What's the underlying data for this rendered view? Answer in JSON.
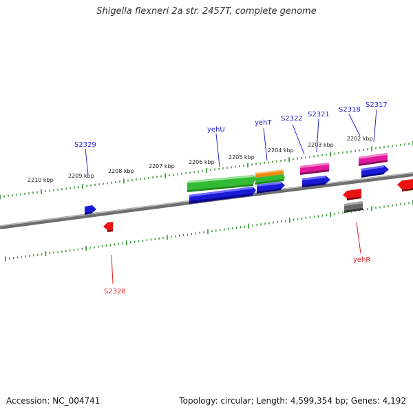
{
  "title": "Shigella flexneri 2a str. 2457T, complete genome",
  "accession_label": "Accession: NC_004741",
  "topology_label": "Topology: circular; Length: 4,599,354 bp; Genes: 4,192",
  "kbp_labels": [
    "2210 kbp",
    "2209 kbp",
    "2208 kbp",
    "2207 kbp",
    "2206 kbp",
    "2205 kbp",
    "2204 kbp",
    "2203 kbp",
    "2202 kbp"
  ],
  "gene_labels": {
    "S2329": "S2329",
    "yehU": "yehU",
    "yehT": "yehT",
    "S2322": "S2322",
    "S2321": "S2321",
    "S2318": "S2318",
    "S2317": "S2317",
    "S2328": "S2328",
    "yehR": "yehR"
  },
  "colors": {
    "backbone": "#7a7a7a",
    "tick": "#2e8b2e",
    "forward_label": "#2222cc",
    "reverse_label": "#dd2222",
    "blue": "#1a1ad6",
    "green": "#33bb33",
    "orange": "#ee8a11",
    "pink": "#e0199a",
    "red": "#ee1111",
    "gray": "#666666"
  }
}
